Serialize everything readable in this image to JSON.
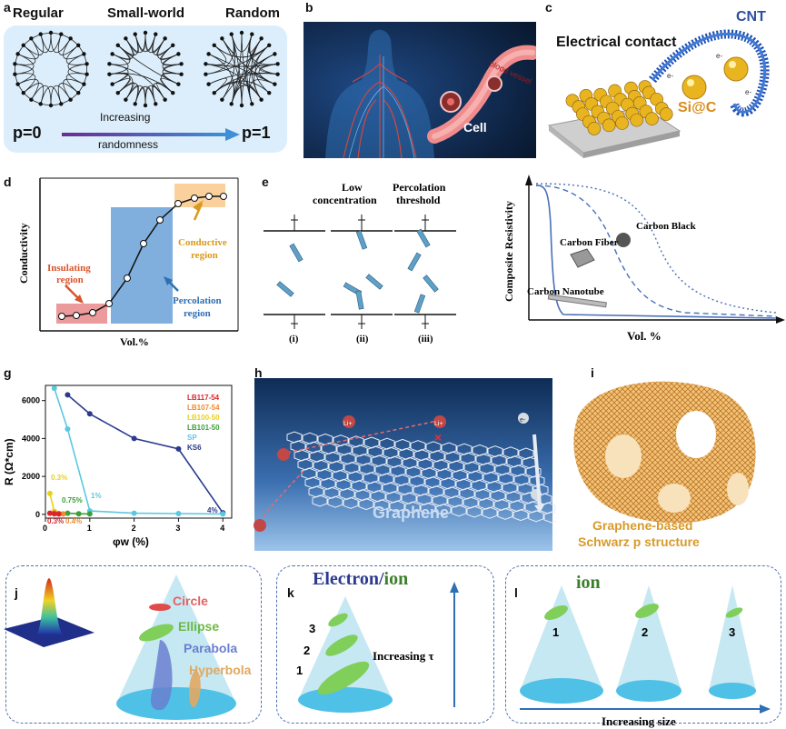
{
  "labels": {
    "a": "a",
    "b": "b",
    "c": "c",
    "d": "d",
    "e": "e",
    "g": "g",
    "h": "h",
    "i": "i",
    "j": "j",
    "k": "k",
    "l": "l"
  },
  "panel_a": {
    "titles": [
      "Regular",
      "Small-world",
      "Random"
    ],
    "p0": "p=0",
    "p1": "p=1",
    "arrow_text_1": "Increasing",
    "arrow_text_2": "randomness"
  },
  "panel_b": {
    "cell": "Cell",
    "vessel": "blood vessel"
  },
  "panel_c": {
    "title": "Electrical contact",
    "cnt": "CNT",
    "si": "Si@C",
    "e": "e-"
  },
  "panel_d": {
    "ylabel": "Conductivity",
    "xlabel": "Vol.%",
    "insulating_1": "Insulating",
    "insulating_2": "region",
    "percolation_1": "Percolation",
    "percolation_2": "region",
    "conductive_1": "Conductive",
    "conductive_2": "region"
  },
  "panel_e": {
    "low_1": "Low",
    "low_2": "concentration",
    "perc_1": "Percolation",
    "perc_2": "threshold",
    "i": "(i)",
    "ii": "(ii)",
    "iii": "(iii)",
    "ylabel": "Composite Resistivity",
    "xlabel": "Vol. %",
    "carbon_black": "Carbon Black",
    "carbon_fiber": "Carbon Fiber",
    "carbon_nanotube": "Carbon Nanotube"
  },
  "chart_data": {
    "type": "line",
    "title": "",
    "xlabel": "φw (%)",
    "ylabel": "R (Ω*cm)",
    "xlim": [
      0,
      4.2
    ],
    "ylim": [
      -200,
      6800
    ],
    "xticks": [
      0,
      1,
      2,
      3,
      4
    ],
    "yticks": [
      0,
      2000,
      4000,
      6000
    ],
    "series": [
      {
        "name": "KS6",
        "color": "#2b3a8f",
        "x": [
          0.5,
          1,
          2,
          3,
          4
        ],
        "y": [
          6300,
          5300,
          4000,
          3450,
          80
        ]
      },
      {
        "name": "SP",
        "color": "#5bc8e0",
        "x": [
          0.2,
          0.5,
          1,
          2,
          3,
          4
        ],
        "y": [
          6650,
          4500,
          180,
          60,
          40,
          20
        ]
      },
      {
        "name": "LB101-50",
        "color": "#3aa03a",
        "x": [
          0.2,
          0.5,
          0.75,
          1
        ],
        "y": [
          150,
          60,
          30,
          20
        ]
      },
      {
        "name": "LB100-50",
        "color": "#e8d21a",
        "x": [
          0.1,
          0.2,
          0.3
        ],
        "y": [
          1100,
          150,
          40
        ]
      },
      {
        "name": "LB107-54",
        "color": "#f08a2e",
        "x": [
          0.2,
          0.3,
          0.4
        ],
        "y": [
          80,
          40,
          20
        ]
      },
      {
        "name": "LB117-54",
        "color": "#d9262b",
        "x": [
          0.1,
          0.2,
          0.3
        ],
        "y": [
          60,
          30,
          15
        ]
      }
    ],
    "annotations": [
      "0.3%",
      "0.75%",
      "1%",
      "4%",
      "0.3%",
      "0.4%"
    ]
  },
  "panel_h": {
    "title": "Graphene",
    "li": "Li+",
    "e": "e-",
    "x": "×"
  },
  "panel_i": {
    "line1": "Graphene-based",
    "line2": "Schwarz p structure"
  },
  "panel_j": {
    "circle": "Circle",
    "ellipse": "Ellipse",
    "parabola": "Parabola",
    "hyperbola": "Hyperbola"
  },
  "panel_k": {
    "electron": "Electron",
    "slash": "/",
    "ion": "ion",
    "axis": "Increasing τ",
    "n1": "1",
    "n2": "2",
    "n3": "3"
  },
  "panel_l": {
    "ion": "ion",
    "axis": "Increasing size",
    "n1": "1",
    "n2": "2",
    "n3": "3"
  },
  "colors": {
    "panel_a_bg": "#dceefb",
    "grad_start": "#6a2c91",
    "grad_end": "#3f8fd6",
    "percolation_blue": "#6aa1d8",
    "insulating_red": "#e88a8a",
    "conductive_orange": "#f9c98c",
    "gold": "#e6a33a",
    "cone": "#bfe6f2"
  }
}
